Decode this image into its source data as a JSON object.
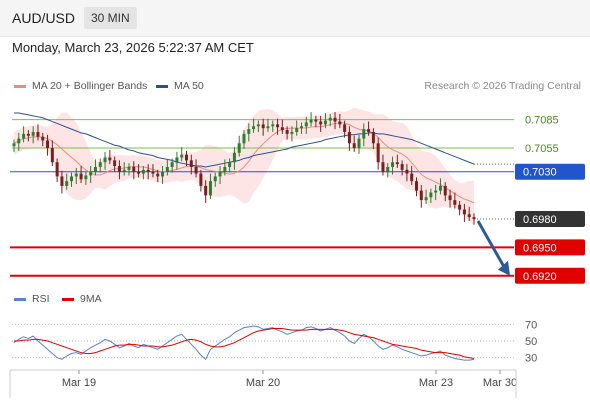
{
  "header": {
    "symbol": "AUD/USD",
    "timeframe": "30 MIN",
    "datetime": "Monday, March 23, 2026 5:22:37 AM CET",
    "credit": "Research © 2026 Trading Central"
  },
  "legend_main": [
    {
      "label": "MA 20 + Bollinger Bands",
      "color": "#f08a80"
    },
    {
      "label": "MA 50",
      "color": "#2f4f8f"
    }
  ],
  "legend_rsi": [
    {
      "label": "RSI",
      "color": "#5b7fd4"
    },
    {
      "label": "9MA",
      "color": "#e00000"
    }
  ],
  "colors": {
    "resistance": "#7fbf4f",
    "pivot": "#2255cc",
    "support": "#e00000",
    "last_price": "#333333",
    "arrow": "#2a5a9e",
    "candle_up": "#2e7d32",
    "candle_down": "#7a1f1f",
    "band_fill": "#fde2e2"
  },
  "chart_data": [
    {
      "type": "candlestick",
      "x_axis_labels": [
        "Mar 19",
        "Mar 20",
        "Mar 23",
        "Mar 30"
      ],
      "y_range": [
        0.6905,
        0.711
      ],
      "levels": [
        {
          "value": 0.7085,
          "label": "0.7085",
          "kind": "resistance"
        },
        {
          "value": 0.7055,
          "label": "0.7055",
          "kind": "resistance"
        },
        {
          "value": 0.703,
          "label": "0.7030",
          "kind": "pivot"
        },
        {
          "value": 0.698,
          "label": "0.6980",
          "kind": "last"
        },
        {
          "value": 0.695,
          "label": "0.6950",
          "kind": "support"
        },
        {
          "value": 0.692,
          "label": "0.6920",
          "kind": "support"
        }
      ],
      "close_series": [
        0.706,
        0.7065,
        0.707,
        0.7068,
        0.7072,
        0.7067,
        0.7063,
        0.7055,
        0.704,
        0.7025,
        0.7015,
        0.702,
        0.7025,
        0.7028,
        0.7022,
        0.7026,
        0.703,
        0.7035,
        0.704,
        0.7045,
        0.7042,
        0.7036,
        0.703,
        0.7032,
        0.7035,
        0.703,
        0.7028,
        0.7032,
        0.703,
        0.7028,
        0.7025,
        0.703,
        0.7035,
        0.704,
        0.7045,
        0.7048,
        0.7042,
        0.7035,
        0.7028,
        0.7015,
        0.7005,
        0.702,
        0.7025,
        0.703,
        0.7035,
        0.704,
        0.705,
        0.706,
        0.707,
        0.7075,
        0.7078,
        0.708,
        0.7076,
        0.7078,
        0.708,
        0.7077,
        0.7074,
        0.707,
        0.7072,
        0.7076,
        0.7078,
        0.7082,
        0.7085,
        0.7083,
        0.708,
        0.7084,
        0.7087,
        0.7083,
        0.708,
        0.7072,
        0.706,
        0.7055,
        0.7065,
        0.7075,
        0.7072,
        0.706,
        0.704,
        0.703,
        0.7035,
        0.704,
        0.7038,
        0.7032,
        0.7028,
        0.702,
        0.701,
        0.7,
        0.7003,
        0.7008,
        0.701,
        0.7015,
        0.7005,
        0.7,
        0.6995,
        0.699,
        0.6985,
        0.6982,
        0.698
      ],
      "ma50": [
        0.7092,
        0.7092,
        0.7091,
        0.709,
        0.7089,
        0.7088,
        0.7087,
        0.7085,
        0.7083,
        0.7081,
        0.7079,
        0.7077,
        0.7075,
        0.7073,
        0.7071,
        0.707,
        0.7068,
        0.7066,
        0.7064,
        0.7062,
        0.706,
        0.7058,
        0.7057,
        0.7055,
        0.7053,
        0.7052,
        0.705,
        0.7049,
        0.7048,
        0.7047,
        0.7045,
        0.7044,
        0.7043,
        0.7042,
        0.704,
        0.7039,
        0.7038,
        0.7037,
        0.7036,
        0.7036,
        0.7035,
        0.7036,
        0.7037,
        0.7038,
        0.7039,
        0.704,
        0.7041,
        0.7042,
        0.7044,
        0.7045,
        0.7047,
        0.7048,
        0.7049,
        0.705,
        0.7051,
        0.7052,
        0.7053,
        0.7054,
        0.7056,
        0.7057,
        0.7058,
        0.7059,
        0.706,
        0.7061,
        0.7062,
        0.7064,
        0.7065,
        0.7066,
        0.7067,
        0.7068,
        0.7069,
        0.7069,
        0.707,
        0.707,
        0.7071,
        0.7071,
        0.707,
        0.707,
        0.7069,
        0.7068,
        0.7067,
        0.7066,
        0.7065,
        0.7064,
        0.7062,
        0.706,
        0.7058,
        0.7056,
        0.7054,
        0.7052,
        0.705,
        0.7048,
        0.7046,
        0.7044,
        0.7042,
        0.704,
        0.7038
      ],
      "rsi": {
        "x_ticks": [
          "70",
          "50",
          "30"
        ],
        "rsi_values": [
          48,
          52,
          55,
          53,
          56,
          50,
          45,
          40,
          35,
          30,
          28,
          32,
          35,
          36,
          34,
          38,
          42,
          45,
          48,
          52,
          50,
          46,
          42,
          44,
          47,
          44,
          42,
          46,
          44,
          42,
          40,
          44,
          48,
          52,
          56,
          58,
          52,
          46,
          40,
          33,
          28,
          40,
          44,
          48,
          52,
          55,
          60,
          63,
          66,
          67,
          68,
          67,
          64,
          65,
          66,
          63,
          61,
          58,
          60,
          62,
          63,
          66,
          67,
          65,
          62,
          64,
          66,
          63,
          60,
          56,
          50,
          47,
          53,
          58,
          55,
          50,
          44,
          40,
          42,
          45,
          43,
          40,
          38,
          36,
          34,
          32,
          33,
          35,
          36,
          38,
          33,
          31,
          29,
          28,
          27,
          27,
          28
        ],
        "ma9_values": [
          50,
          50,
          51,
          51,
          52,
          52,
          51,
          50,
          48,
          46,
          44,
          42,
          40,
          38,
          36,
          35,
          35,
          36,
          38,
          40,
          42,
          44,
          45,
          45,
          46,
          46,
          45,
          44,
          44,
          44,
          43,
          43,
          44,
          45,
          47,
          49,
          51,
          52,
          51,
          49,
          46,
          44,
          43,
          43,
          44,
          46,
          48,
          51,
          54,
          57,
          60,
          62,
          63,
          64,
          65,
          65,
          65,
          64,
          63,
          63,
          63,
          63,
          64,
          64,
          64,
          64,
          64,
          64,
          63,
          62,
          60,
          58,
          57,
          56,
          55,
          54,
          52,
          50,
          48,
          46,
          45,
          44,
          43,
          42,
          41,
          39,
          38,
          37,
          36,
          36,
          36,
          35,
          34,
          33,
          31,
          30,
          29
        ]
      }
    }
  ]
}
